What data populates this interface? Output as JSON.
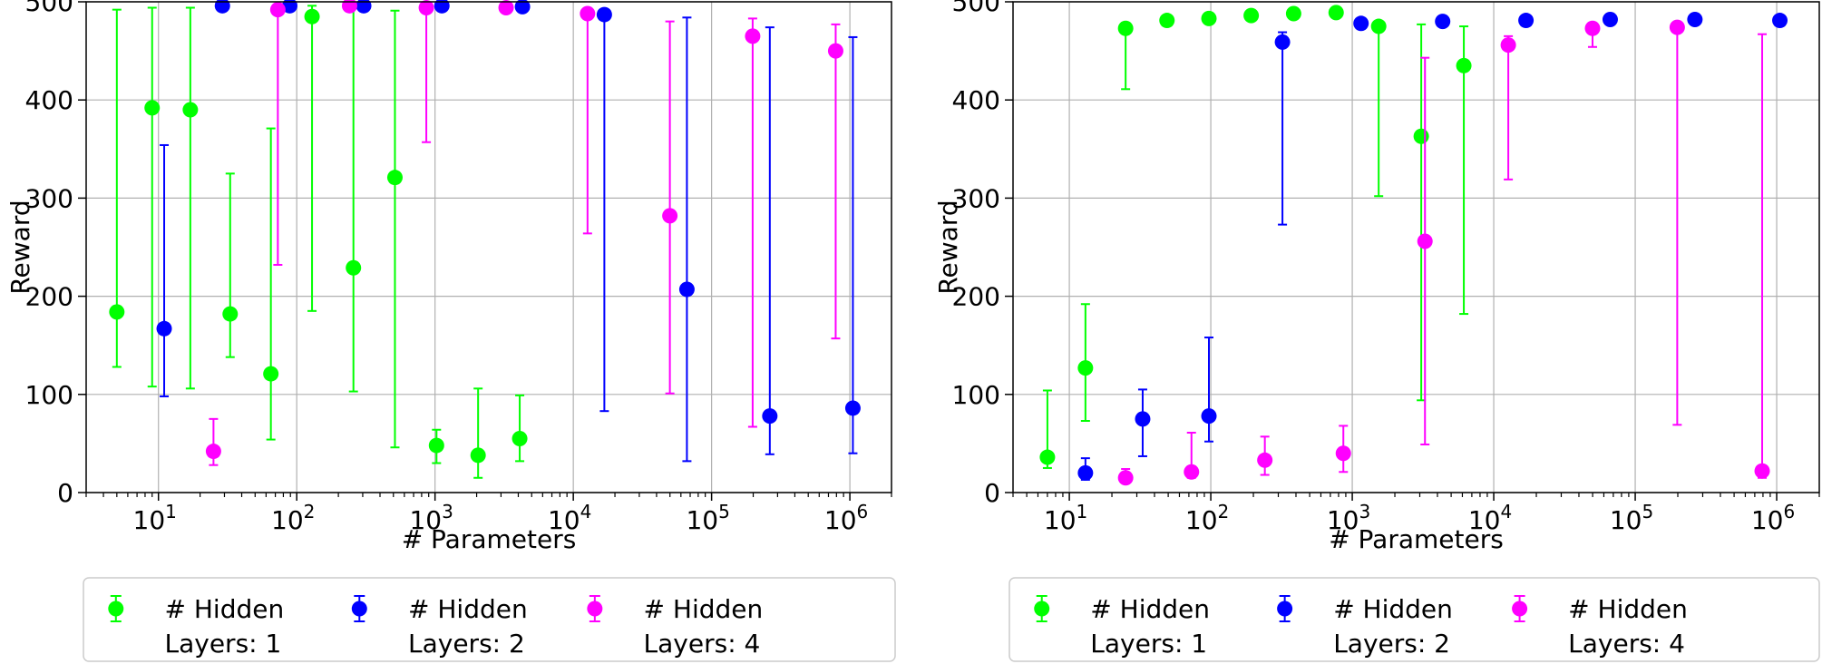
{
  "chart_data": [
    {
      "type": "scatter",
      "xlabel": "# Parameters",
      "ylabel": "Reward",
      "xscale": "log",
      "xlim": [
        3,
        2000000
      ],
      "ylim": [
        0,
        500
      ],
      "grid": true,
      "legend": "below",
      "yticks": [
        "0",
        "100",
        "200",
        "300",
        "400",
        "500"
      ],
      "series": [
        {
          "name": "# Hidden\nLayers: 1",
          "color": "#00ff00",
          "points": [
            {
              "x": 5,
              "y": 184,
              "lo": 128,
              "hi": 492
            },
            {
              "x": 9,
              "y": 392,
              "lo": 108,
              "hi": 494
            },
            {
              "x": 17,
              "y": 390,
              "lo": 106,
              "hi": 494
            },
            {
              "x": 33,
              "y": 182,
              "lo": 138,
              "hi": 325
            },
            {
              "x": 65,
              "y": 121,
              "lo": 54,
              "hi": 371
            },
            {
              "x": 129,
              "y": 485,
              "lo": 185,
              "hi": 496
            },
            {
              "x": 257,
              "y": 229,
              "lo": 103,
              "hi": 496
            },
            {
              "x": 513,
              "y": 321,
              "lo": 46,
              "hi": 491
            },
            {
              "x": 1025,
              "y": 48,
              "lo": 30,
              "hi": 64
            },
            {
              "x": 2049,
              "y": 38,
              "lo": 15,
              "hi": 106
            },
            {
              "x": 4097,
              "y": 55,
              "lo": 32,
              "hi": 99
            }
          ]
        },
        {
          "name": "# Hidden\nLayers: 2",
          "color": "#0000ff",
          "points": [
            {
              "x": 11,
              "y": 167,
              "lo": 98,
              "hi": 354
            },
            {
              "x": 29,
              "y": 496,
              "lo": 496,
              "hi": 496
            },
            {
              "x": 89,
              "y": 496,
              "lo": 496,
              "hi": 496
            },
            {
              "x": 305,
              "y": 496,
              "lo": 496,
              "hi": 496
            },
            {
              "x": 1121,
              "y": 496,
              "lo": 496,
              "hi": 496
            },
            {
              "x": 4289,
              "y": 495,
              "lo": 495,
              "hi": 495
            },
            {
              "x": 16769,
              "y": 487,
              "lo": 83,
              "hi": 490
            },
            {
              "x": 66305,
              "y": 207,
              "lo": 32,
              "hi": 484
            },
            {
              "x": 263681,
              "y": 78,
              "lo": 39,
              "hi": 474
            },
            {
              "x": 1051649,
              "y": 86,
              "lo": 40,
              "hi": 464
            }
          ]
        },
        {
          "name": "# Hidden\nLayers: 4",
          "color": "#ff00ff",
          "points": [
            {
              "x": 25,
              "y": 42,
              "lo": 28,
              "hi": 75
            },
            {
              "x": 73,
              "y": 492,
              "lo": 232,
              "hi": 494
            },
            {
              "x": 241,
              "y": 496,
              "lo": 496,
              "hi": 496
            },
            {
              "x": 865,
              "y": 494,
              "lo": 357,
              "hi": 496
            },
            {
              "x": 3265,
              "y": 494,
              "lo": 494,
              "hi": 494
            },
            {
              "x": 12673,
              "y": 488,
              "lo": 264,
              "hi": 490
            },
            {
              "x": 49921,
              "y": 282,
              "lo": 101,
              "hi": 480
            },
            {
              "x": 198145,
              "y": 465,
              "lo": 67,
              "hi": 483
            },
            {
              "x": 789505,
              "y": 450,
              "lo": 157,
              "hi": 477
            }
          ]
        }
      ]
    },
    {
      "type": "scatter",
      "xlabel": "# Parameters",
      "ylabel": "Reward",
      "xscale": "log",
      "xlim": [
        4,
        2000000
      ],
      "ylim": [
        0,
        500
      ],
      "grid": true,
      "legend": "below",
      "yticks": [
        "0",
        "100",
        "200",
        "300",
        "400",
        "500"
      ],
      "series": [
        {
          "name": "# Hidden\nLayers: 1",
          "color": "#00ff00",
          "points": [
            {
              "x": 7,
              "y": 36,
              "lo": 25,
              "hi": 104
            },
            {
              "x": 13,
              "y": 127,
              "lo": 73,
              "hi": 192
            },
            {
              "x": 25,
              "y": 473,
              "lo": 411,
              "hi": 476
            },
            {
              "x": 49,
              "y": 481,
              "lo": 481,
              "hi": 481
            },
            {
              "x": 97,
              "y": 483,
              "lo": 483,
              "hi": 483
            },
            {
              "x": 193,
              "y": 486,
              "lo": 486,
              "hi": 486
            },
            {
              "x": 385,
              "y": 488,
              "lo": 488,
              "hi": 488
            },
            {
              "x": 769,
              "y": 489,
              "lo": 489,
              "hi": 489
            },
            {
              "x": 1537,
              "y": 475,
              "lo": 302,
              "hi": 477
            },
            {
              "x": 3073,
              "y": 363,
              "lo": 94,
              "hi": 477
            },
            {
              "x": 6145,
              "y": 435,
              "lo": 182,
              "hi": 475
            }
          ]
        },
        {
          "name": "# Hidden\nLayers: 2",
          "color": "#0000ff",
          "points": [
            {
              "x": 13,
              "y": 20,
              "lo": 13,
              "hi": 35
            },
            {
              "x": 33,
              "y": 75,
              "lo": 37,
              "hi": 105
            },
            {
              "x": 97,
              "y": 78,
              "lo": 52,
              "hi": 158
            },
            {
              "x": 321,
              "y": 459,
              "lo": 273,
              "hi": 469
            },
            {
              "x": 1153,
              "y": 478,
              "lo": 478,
              "hi": 478
            },
            {
              "x": 4353,
              "y": 480,
              "lo": 480,
              "hi": 480
            },
            {
              "x": 16897,
              "y": 481,
              "lo": 481,
              "hi": 481
            },
            {
              "x": 66561,
              "y": 482,
              "lo": 482,
              "hi": 482
            },
            {
              "x": 264193,
              "y": 482,
              "lo": 482,
              "hi": 482
            },
            {
              "x": 1052673,
              "y": 481,
              "lo": 481,
              "hi": 481
            }
          ]
        },
        {
          "name": "# Hidden\nLayers: 4",
          "color": "#ff00ff",
          "points": [
            {
              "x": 25,
              "y": 15,
              "lo": 11,
              "hi": 24
            },
            {
              "x": 73,
              "y": 21,
              "lo": 15,
              "hi": 61
            },
            {
              "x": 241,
              "y": 33,
              "lo": 18,
              "hi": 57
            },
            {
              "x": 865,
              "y": 40,
              "lo": 21,
              "hi": 68
            },
            {
              "x": 3265,
              "y": 256,
              "lo": 49,
              "hi": 443
            },
            {
              "x": 12673,
              "y": 456,
              "lo": 319,
              "hi": 465
            },
            {
              "x": 49921,
              "y": 473,
              "lo": 454,
              "hi": 476
            },
            {
              "x": 198145,
              "y": 474,
              "lo": 69,
              "hi": 476
            },
            {
              "x": 789505,
              "y": 22,
              "lo": 15,
              "hi": 467
            }
          ]
        }
      ]
    }
  ]
}
